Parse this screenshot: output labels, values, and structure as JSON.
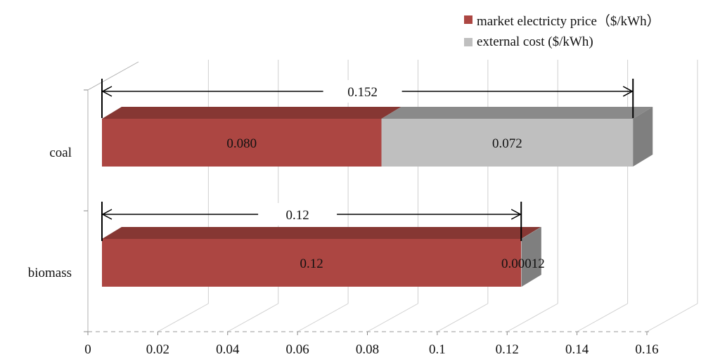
{
  "chart_data": {
    "type": "bar",
    "orientation": "horizontal",
    "stacked": true,
    "style": "3d",
    "categories": [
      "coal",
      "biomass"
    ],
    "series": [
      {
        "name": "market electricty price（$/kWh）",
        "values": [
          0.08,
          0.12
        ],
        "labels": [
          "0.080",
          "0.12"
        ],
        "color": "#ac4642"
      },
      {
        "name": "external cost ($/kWh)",
        "values": [
          0.072,
          0.00012
        ],
        "labels": [
          "0.072",
          "0.00012"
        ],
        "color": "#bfbfbf"
      }
    ],
    "totals": [
      {
        "category": "coal",
        "value": 0.152,
        "label": "0.152"
      },
      {
        "category": "biomass",
        "value": 0.12,
        "label": "0.12"
      }
    ],
    "x_ticks": [
      "0",
      "0.02",
      "0.04",
      "0.06",
      "0.08",
      "0.1",
      "0.12",
      "0.14",
      "0.16"
    ],
    "xlim": [
      0,
      0.16
    ],
    "grid": true,
    "legend_position": "top-right"
  }
}
